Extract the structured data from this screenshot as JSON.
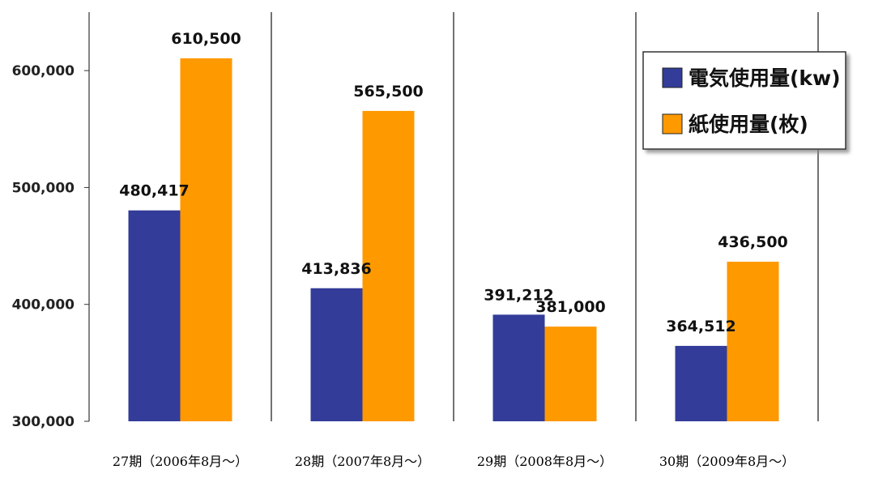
{
  "chart_data": {
    "type": "bar",
    "categories": [
      "27期（2006年8月〜）",
      "28期（2007年8月〜）",
      "29期（2008年8月〜）",
      "30期（2009年8月〜）"
    ],
    "series": [
      {
        "name": "電気使用量(kw)",
        "color": "#333c99",
        "values": [
          480417,
          413836,
          391212,
          364512
        ],
        "labels": [
          "480,417",
          "413,836",
          "391,212",
          "364,512"
        ]
      },
      {
        "name": "紙使用量(枚)",
        "color": "#ff9900",
        "values": [
          610500,
          565500,
          381000,
          436500
        ],
        "labels": [
          "610,500",
          "565,500",
          "381,000",
          "436,500"
        ]
      }
    ],
    "y_ticks": [
      {
        "value": 300000,
        "label": "300,000"
      },
      {
        "value": 400000,
        "label": "400,000"
      },
      {
        "value": 500000,
        "label": "500,000"
      },
      {
        "value": 600000,
        "label": "600,000"
      }
    ],
    "ylim": [
      300000,
      650000
    ],
    "grid": "vertical category separators",
    "legend_position": "top-right"
  }
}
